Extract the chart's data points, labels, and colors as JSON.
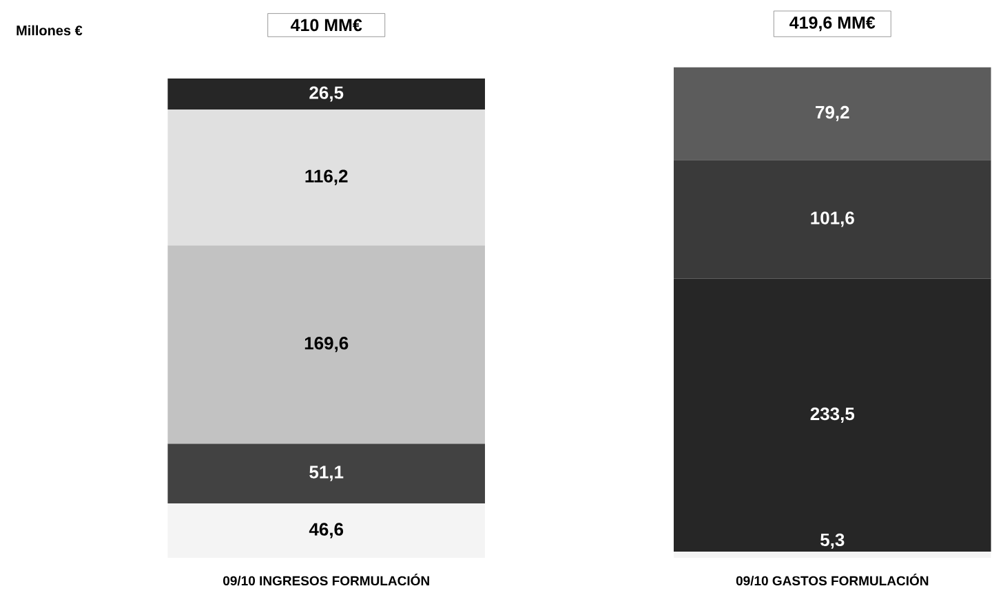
{
  "chart_data": {
    "type": "bar",
    "stacked": true,
    "annotations": [
      "Millones €"
    ],
    "categories": [
      "09/10 INGRESOS FORMULACIÓN",
      "09/10 GASTOS FORMULACIÓN"
    ],
    "series": [
      {
        "colors": [
          "#f4f4f4",
          "#f4f4f4"
        ],
        "values": [
          46.6,
          5.3
        ],
        "value_labels": [
          "46,6",
          "5,3"
        ]
      },
      {
        "colors": [
          "#424242",
          "#262626"
        ],
        "values": [
          51.1,
          233.5
        ],
        "value_labels": [
          "51,1",
          "233,5"
        ]
      },
      {
        "colors": [
          "#c2c2c2",
          "#3a3a3a"
        ],
        "values": [
          169.6,
          101.6
        ],
        "value_labels": [
          "169,6",
          "101,6"
        ]
      },
      {
        "colors": [
          "#e0e0e0",
          "#5c5c5c"
        ],
        "values": [
          116.2,
          79.2
        ],
        "value_labels": [
          "116,2",
          "79,2"
        ]
      },
      {
        "colors": [
          "#262626",
          null
        ],
        "values": [
          26.5,
          null
        ],
        "value_labels": [
          "26,5",
          null
        ]
      }
    ],
    "totals": [
      "410 MM€",
      "419,6 MM€"
    ]
  }
}
